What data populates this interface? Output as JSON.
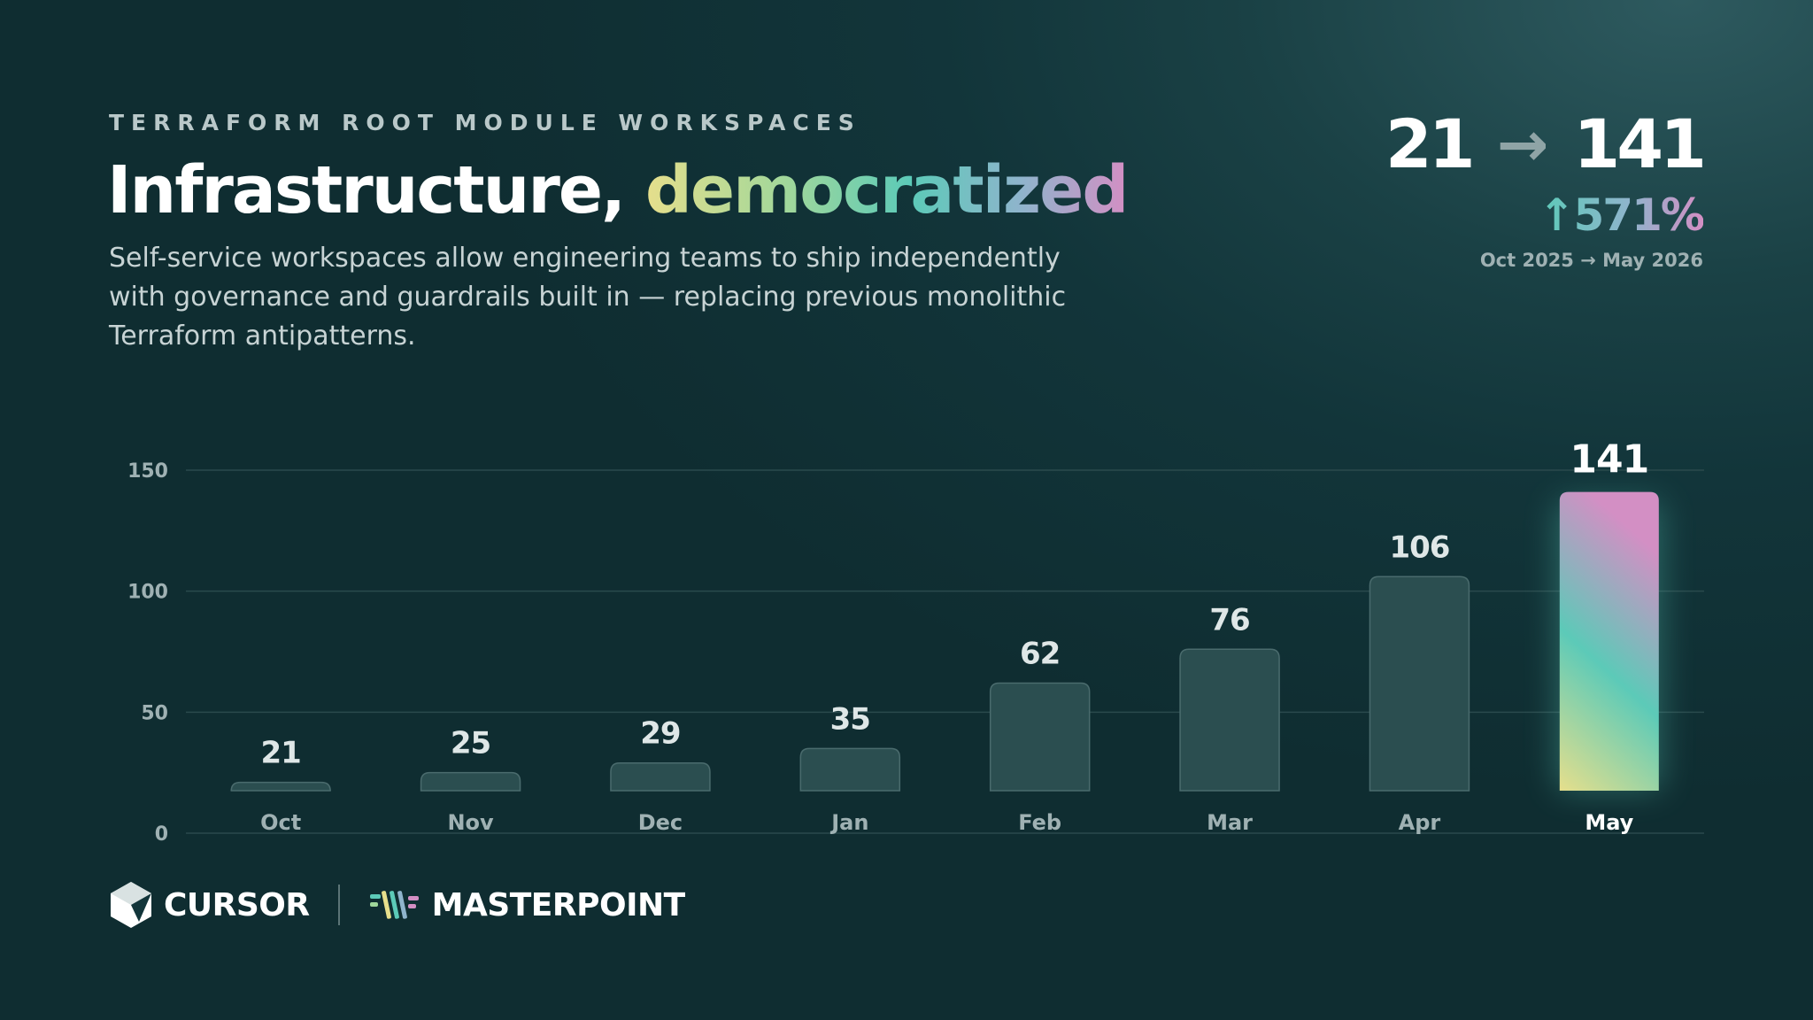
{
  "header": {
    "eyebrow": "TERRAFORM ROOT MODULE WORKSPACES",
    "title_main": "Infrastructure,",
    "title_accent": "democratized",
    "subtitle": "Self-service workspaces allow engineering teams to ship independently with governance and guardrails built in — replacing previous monolithic Terraform antipatterns."
  },
  "kpi": {
    "from": "21",
    "arrow": "→",
    "to": "141",
    "change": "↑571%",
    "period": "Oct 2025 → May 2026"
  },
  "chart_data": {
    "type": "bar",
    "categories": [
      "Oct",
      "Nov",
      "Dec",
      "Jan",
      "Feb",
      "Mar",
      "Apr",
      "May"
    ],
    "values": [
      21,
      25,
      29,
      35,
      62,
      76,
      106,
      141
    ],
    "value_labels": [
      "21",
      "25",
      "29",
      "35",
      "62",
      "76",
      "106",
      "141"
    ],
    "y_ticks": [
      0,
      50,
      100,
      150
    ],
    "ylim": [
      0,
      150
    ],
    "grid": true,
    "highlight_index": 7,
    "colors": {
      "bar": "#2b4e50",
      "bar_border": "#4a6b6d",
      "highlight_gradient": [
        "#e6df8c",
        "#5ccab8",
        "#d38fc4"
      ],
      "grid": "#2a4a4d",
      "tick_label": "#9fb1b3",
      "value_label": "#dfe7e7"
    }
  },
  "footer": {
    "cursor_label": "CURSOR",
    "masterpoint_label": "MASTERPOINT"
  }
}
